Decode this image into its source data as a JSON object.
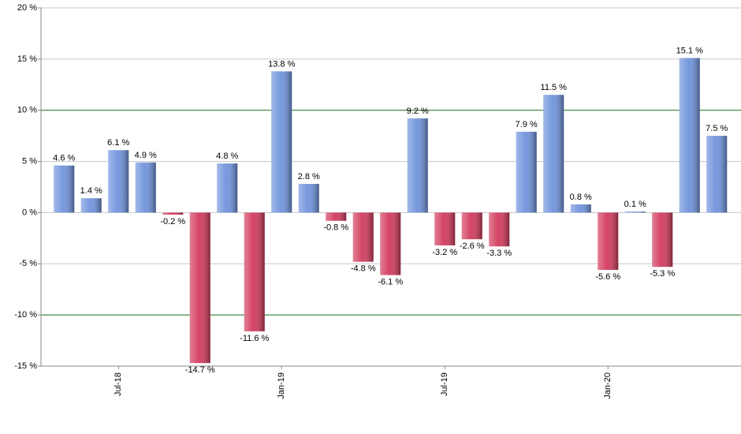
{
  "chart_data": {
    "type": "bar",
    "categories": [
      null,
      null,
      "Jul-18",
      null,
      null,
      null,
      null,
      null,
      "Jan-19",
      null,
      null,
      null,
      null,
      null,
      "Jul-19",
      null,
      null,
      null,
      null,
      null,
      "Jan-20",
      null,
      null,
      null,
      null
    ],
    "values": [
      4.6,
      1.4,
      6.1,
      4.9,
      -0.2,
      -14.7,
      4.8,
      -11.6,
      13.8,
      2.8,
      -0.8,
      -4.8,
      -6.1,
      9.2,
      -3.2,
      -2.6,
      -3.3,
      7.9,
      11.5,
      0.8,
      -5.6,
      0.1,
      -5.3,
      15.1,
      7.5
    ],
    "value_labels": [
      "4.6 %",
      "1.4 %",
      "6.1 %",
      "4.9 %",
      "-0.2 %",
      "-14.7 %",
      "4.8 %",
      "-11.6 %",
      "13.8 %",
      "2.8 %",
      "-0.8 %",
      "-4.8 %",
      "-6.1 %",
      "9.2 %",
      "-3.2 %",
      "-2.6 %",
      "-3.3 %",
      "7.9 %",
      "11.5 %",
      "0.8 %",
      "-5.6 %",
      "0.1 %",
      "-5.3 %",
      "15.1 %",
      "7.5 %"
    ],
    "positive_color": "#6f93dc",
    "negative_color": "#d23a5c",
    "ylim": [
      -15,
      20
    ],
    "yticks": [
      {
        "value": -15,
        "label": "-15 %"
      },
      {
        "value": -10,
        "label": "-10 %"
      },
      {
        "value": -5,
        "label": "-5 %"
      },
      {
        "value": 0,
        "label": "0 %"
      },
      {
        "value": 5,
        "label": "5 %"
      },
      {
        "value": 10,
        "label": "10 %"
      },
      {
        "value": 15,
        "label": "15 %"
      },
      {
        "value": 20,
        "label": "20 %"
      }
    ],
    "grid": true,
    "grid_colors": [
      "#c8c8c8",
      "#1a6b1a",
      "#c8c8c8",
      "#c8c8c8",
      "#c8c8c8",
      "#1a6b1a",
      "#c8c8c8",
      "#c8c8c8"
    ]
  }
}
